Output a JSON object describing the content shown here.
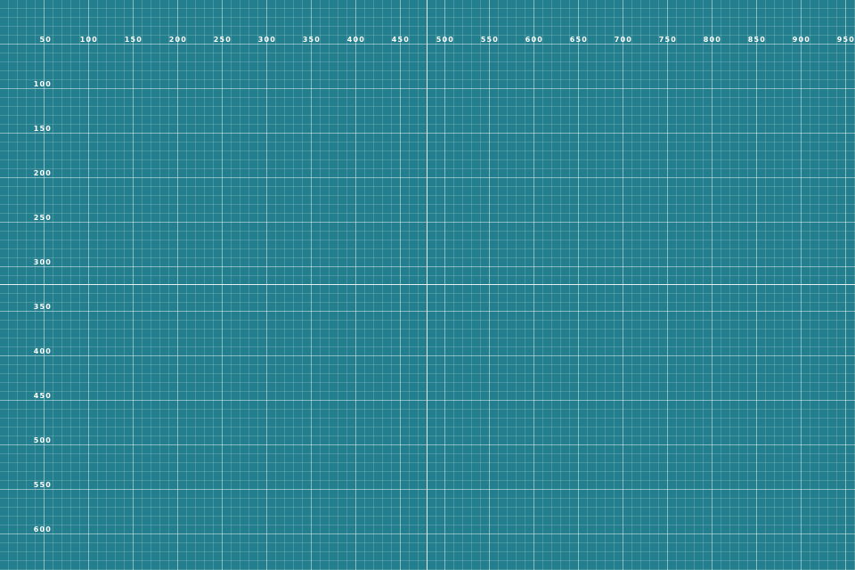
{
  "background_color": "#237f8e",
  "grid_line_color": "#ffffff",
  "ruler": {
    "x_labels": [
      "50",
      "100",
      "150",
      "200",
      "250",
      "300",
      "350",
      "400",
      "450",
      "500",
      "550",
      "600",
      "650",
      "700",
      "750",
      "800",
      "850",
      "900",
      "950"
    ],
    "y_labels": [
      "100",
      "150",
      "200",
      "250",
      "300",
      "350",
      "400",
      "450",
      "500",
      "550",
      "600"
    ]
  }
}
